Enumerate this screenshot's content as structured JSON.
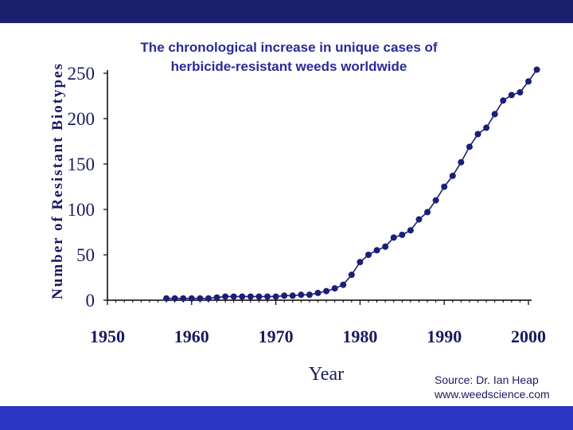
{
  "chart_data": {
    "type": "line",
    "title": [
      "The chronological increase in unique cases of",
      "herbicide-resistant weeds worldwide"
    ],
    "xlabel": "Year",
    "ylabel": "Number of Resistant Biotypes",
    "xlim": [
      1950,
      2000
    ],
    "ylim": [
      0,
      250
    ],
    "xticks": [
      "1950",
      "1960",
      "1970",
      "1980",
      "1990",
      "2000"
    ],
    "yticks": [
      "0",
      "50",
      "100",
      "150",
      "200",
      "250"
    ],
    "grid": false,
    "series_color": "#1a1f7a",
    "x": [
      1957,
      1958,
      1959,
      1960,
      1961,
      1962,
      1963,
      1964,
      1965,
      1966,
      1967,
      1968,
      1969,
      1970,
      1971,
      1972,
      1973,
      1974,
      1975,
      1976,
      1977,
      1978,
      1979,
      1980,
      1981,
      1982,
      1983,
      1984,
      1985,
      1986,
      1987,
      1988,
      1989,
      1990,
      1991,
      1992,
      1993,
      1994,
      1995,
      1996,
      1997,
      1998,
      1999,
      2000,
      2001
    ],
    "y": [
      2,
      2,
      2,
      2,
      2,
      2,
      3,
      4,
      4,
      4,
      4,
      4,
      4,
      4,
      5,
      5,
      6,
      6,
      8,
      10,
      13,
      17,
      28,
      42,
      50,
      55,
      59,
      69,
      72,
      77,
      89,
      97,
      110,
      125,
      137,
      152,
      169,
      183,
      190,
      205,
      220,
      226,
      229,
      241,
      254
    ]
  },
  "source": {
    "line1": "Source: Dr. Ian Heap",
    "line2": "www.weedscience.com"
  }
}
